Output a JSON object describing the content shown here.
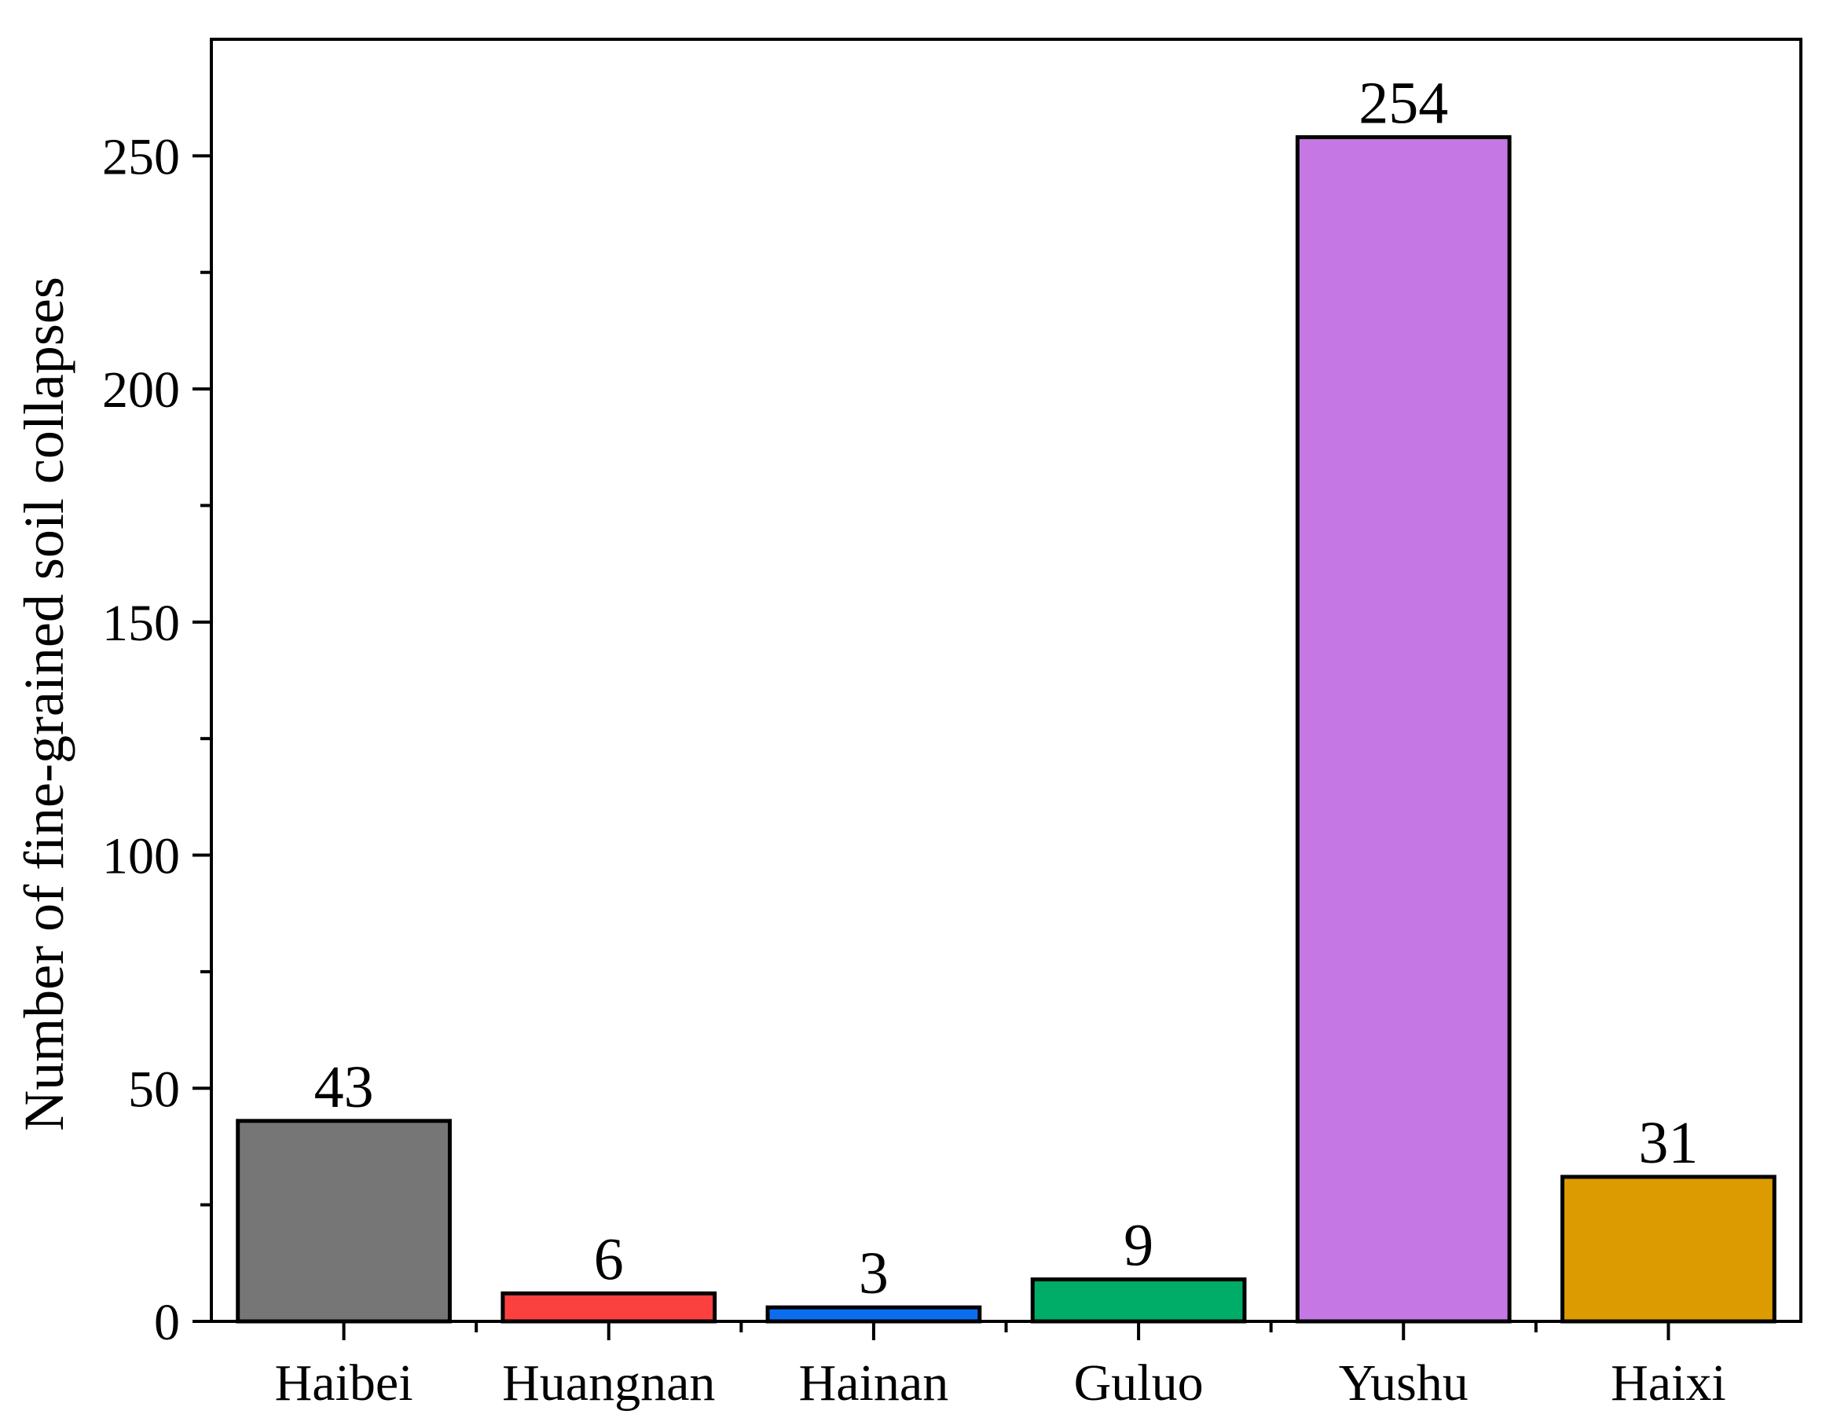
{
  "chart_data": {
    "type": "bar",
    "title": "",
    "xlabel": "",
    "ylabel": "Number of fine-grained soil collapses",
    "categories": [
      "Haibei",
      "Huangnan",
      "Hainan",
      "Guluo",
      "Yushu",
      "Haixi"
    ],
    "values": [
      43,
      6,
      3,
      9,
      254,
      31
    ],
    "data_labels": [
      "43",
      "6",
      "3",
      "9",
      "254",
      "31"
    ],
    "colors": [
      "#767676",
      "#fb4040",
      "#0b6ef0",
      "#00ad68",
      "#c578e3",
      "#dc9b00"
    ],
    "ylim": [
      0,
      275
    ],
    "yticks": [
      0,
      50,
      100,
      150,
      200,
      250
    ],
    "ytick_labels": [
      "0",
      "50",
      "100",
      "150",
      "200",
      "250"
    ],
    "y_minor_step": 25,
    "grid": false,
    "legend": "none"
  }
}
